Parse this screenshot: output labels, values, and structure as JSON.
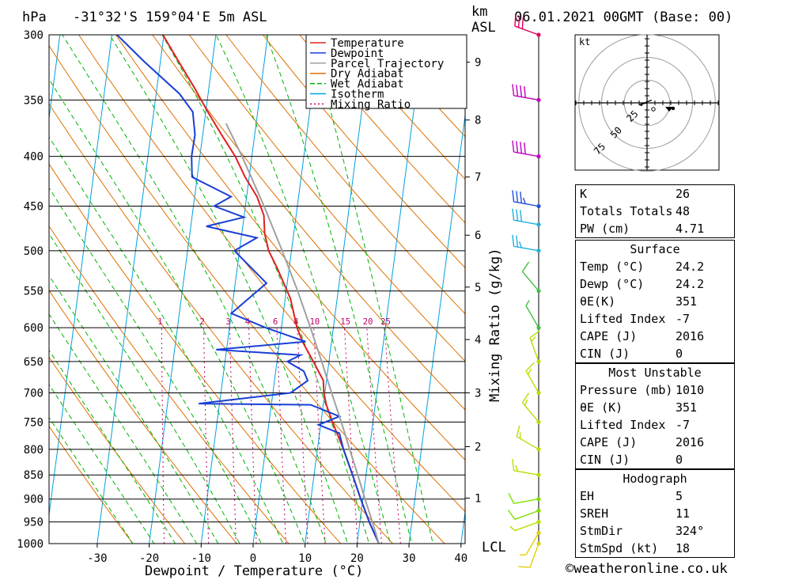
{
  "header": {
    "unit_left": "hPa",
    "location": "-31°32'S  159°04'E  5m  ASL",
    "unit_km": "km",
    "unit_asl": "ASL",
    "datetime": "06.01.2021  00GMT  (Base: 00)"
  },
  "chart_data": {
    "type": "skew-t",
    "xlabel": "Dewpoint / Temperature (°C)",
    "y2label": "Mixing Ratio (g/kg)",
    "pressure_ticks": [
      300,
      350,
      400,
      450,
      500,
      550,
      600,
      650,
      700,
      750,
      800,
      850,
      900,
      950,
      1000
    ],
    "temp_ticks": [
      -30,
      -20,
      -10,
      0,
      10,
      20,
      30,
      40
    ],
    "km_ticks": [
      {
        "km": 9,
        "p": 320
      },
      {
        "km": 8,
        "p": 367
      },
      {
        "km": 7,
        "p": 420
      },
      {
        "km": 6,
        "p": 482
      },
      {
        "km": 5,
        "p": 545
      },
      {
        "km": 4,
        "p": 617
      },
      {
        "km": 3,
        "p": 700
      },
      {
        "km": 2,
        "p": 795
      },
      {
        "km": 1,
        "p": 898
      }
    ],
    "lcl_label": "LCL",
    "mixing_ratio_labels": [
      "1",
      "2",
      "3",
      "4",
      "6",
      "8",
      "10",
      "15",
      "20",
      "25"
    ],
    "mixing_ratio_values": [
      1,
      2,
      3,
      4,
      6,
      8,
      10,
      15,
      20,
      25
    ],
    "legend": [
      "Temperature",
      "Dewpoint",
      "Parcel Trajectory",
      "Dry Adiabat",
      "Wet Adiabat",
      "Isotherm",
      "Mixing Ratio"
    ],
    "colors": {
      "temperature": "#e02020",
      "dewpoint": "#1a3fd6",
      "parcel": "#a0a0a0",
      "dry_adiabat": "#e07000",
      "wet_adiabat": "#00b400",
      "isotherm": "#00a0e0",
      "mixing_ratio": "#c0006a"
    },
    "series": [
      {
        "name": "Temperature",
        "points": [
          [
            1000,
            24.2
          ],
          [
            950,
            21.8
          ],
          [
            900,
            19.6
          ],
          [
            850,
            17.4
          ],
          [
            800,
            15.0
          ],
          [
            750,
            12.2
          ],
          [
            720,
            10.6
          ],
          [
            700,
            9.8
          ],
          [
            680,
            9.4
          ],
          [
            650,
            7.0
          ],
          [
            620,
            4.4
          ],
          [
            600,
            3.0
          ],
          [
            560,
            1.0
          ],
          [
            520,
            -2.4
          ],
          [
            500,
            -4.4
          ],
          [
            480,
            -5.6
          ],
          [
            460,
            -6.2
          ],
          [
            440,
            -8.0
          ],
          [
            420,
            -10.8
          ],
          [
            400,
            -13.2
          ],
          [
            380,
            -16.4
          ],
          [
            360,
            -19.6
          ],
          [
            340,
            -22.8
          ],
          [
            320,
            -26.4
          ],
          [
            300,
            -30.2
          ]
        ]
      },
      {
        "name": "Dewpoint",
        "points": [
          [
            1000,
            24.2
          ],
          [
            950,
            21.8
          ],
          [
            900,
            19.6
          ],
          [
            850,
            17.4
          ],
          [
            800,
            15.0
          ],
          [
            770,
            13.8
          ],
          [
            755,
            9.6
          ],
          [
            740,
            13.4
          ],
          [
            720,
            7.6
          ],
          [
            718,
            -14.0
          ],
          [
            700,
            3.4
          ],
          [
            680,
            6.4
          ],
          [
            665,
            5.4
          ],
          [
            650,
            2.0
          ],
          [
            640,
            4.4
          ],
          [
            632,
            -12.0
          ],
          [
            620,
            5.0
          ],
          [
            600,
            -3.0
          ],
          [
            580,
            -10.0
          ],
          [
            540,
            -4.0
          ],
          [
            500,
            -11.0
          ],
          [
            485,
            -7.0
          ],
          [
            472,
            -17.0
          ],
          [
            462,
            -10.0
          ],
          [
            450,
            -16.0
          ],
          [
            440,
            -13.0
          ],
          [
            420,
            -21.0
          ],
          [
            400,
            -21.6
          ],
          [
            380,
            -21.5
          ],
          [
            360,
            -22.5
          ],
          [
            345,
            -25.5
          ],
          [
            320,
            -33.0
          ],
          [
            300,
            -39.0
          ]
        ]
      },
      {
        "name": "Parcel Trajectory",
        "points": [
          [
            1000,
            24.2
          ],
          [
            950,
            22.4
          ],
          [
            900,
            20.4
          ],
          [
            850,
            18.4
          ],
          [
            800,
            16.2
          ],
          [
            750,
            13.9
          ],
          [
            700,
            11.3
          ],
          [
            650,
            8.6
          ],
          [
            600,
            5.6
          ],
          [
            550,
            2.2
          ],
          [
            500,
            -1.8
          ],
          [
            450,
            -6.4
          ],
          [
            400,
            -11.9
          ],
          [
            370,
            -15.8
          ]
        ]
      }
    ],
    "winds": [
      {
        "p": 1000,
        "dir": 200,
        "spd": 10,
        "color": "#e0d000"
      },
      {
        "p": 975,
        "dir": 210,
        "spd": 5,
        "color": "#e0d000"
      },
      {
        "p": 950,
        "dir": 250,
        "spd": 5,
        "color": "#b4e000"
      },
      {
        "p": 925,
        "dir": 250,
        "spd": 10,
        "color": "#80e000"
      },
      {
        "p": 900,
        "dir": 260,
        "spd": 10,
        "color": "#80e000"
      },
      {
        "p": 850,
        "dir": 280,
        "spd": 15,
        "color": "#b4e000"
      },
      {
        "p": 800,
        "dir": 300,
        "spd": 15,
        "color": "#b4e000"
      },
      {
        "p": 750,
        "dir": 320,
        "spd": 15,
        "color": "#b4e000"
      },
      {
        "p": 700,
        "dir": 330,
        "spd": 15,
        "color": "#b4e000"
      },
      {
        "p": 650,
        "dir": 340,
        "spd": 15,
        "color": "#b4e000"
      },
      {
        "p": 600,
        "dir": 330,
        "spd": 5,
        "color": "#40c040"
      },
      {
        "p": 550,
        "dir": 320,
        "spd": 10,
        "color": "#40c040"
      },
      {
        "p": 500,
        "dir": 280,
        "spd": 25,
        "color": "#20b0e0"
      },
      {
        "p": 470,
        "dir": 280,
        "spd": 30,
        "color": "#20b0e0"
      },
      {
        "p": 450,
        "dir": 280,
        "spd": 35,
        "color": "#2050e0"
      },
      {
        "p": 400,
        "dir": 280,
        "spd": 40,
        "color": "#c000c0"
      },
      {
        "p": 350,
        "dir": 280,
        "spd": 40,
        "color": "#c000c0"
      },
      {
        "p": 300,
        "dir": 290,
        "spd": 30,
        "color": "#e00060"
      }
    ]
  },
  "hodograph": {
    "unit": "kt",
    "ring_labels": [
      "25",
      "50",
      "75"
    ],
    "trace_kt": [
      [
        0,
        0
      ],
      [
        -5,
        -1
      ],
      [
        -6,
        -3
      ],
      [
        -8,
        -2
      ],
      [
        5,
        3
      ]
    ]
  },
  "indices": {
    "top": [
      {
        "label": "K",
        "value": "26"
      },
      {
        "label": "Totals Totals",
        "value": "48"
      },
      {
        "label": "PW (cm)",
        "value": "4.71"
      }
    ],
    "surface": {
      "title": "Surface",
      "rows": [
        {
          "label": "Temp (°C)",
          "value": "24.2"
        },
        {
          "label": "Dewp (°C)",
          "value": "24.2"
        },
        {
          "label": "θE(K)",
          "value": "351"
        },
        {
          "label": "Lifted Index",
          "value": "-7"
        },
        {
          "label": "CAPE (J)",
          "value": "2016"
        },
        {
          "label": "CIN (J)",
          "value": "0"
        }
      ]
    },
    "most_unstable": {
      "title": "Most Unstable",
      "rows": [
        {
          "label": "Pressure (mb)",
          "value": "1010"
        },
        {
          "label": "θE (K)",
          "value": "351"
        },
        {
          "label": "Lifted Index",
          "value": "-7"
        },
        {
          "label": "CAPE (J)",
          "value": "2016"
        },
        {
          "label": "CIN (J)",
          "value": "0"
        }
      ]
    },
    "hodograph_box": {
      "title": "Hodograph",
      "rows": [
        {
          "label": "EH",
          "value": "5"
        },
        {
          "label": "SREH",
          "value": "11"
        },
        {
          "label": "StmDir",
          "value": "324°"
        },
        {
          "label": "StmSpd (kt)",
          "value": "18"
        }
      ]
    }
  },
  "footer": {
    "credit": "©weatheronline.co.uk"
  }
}
